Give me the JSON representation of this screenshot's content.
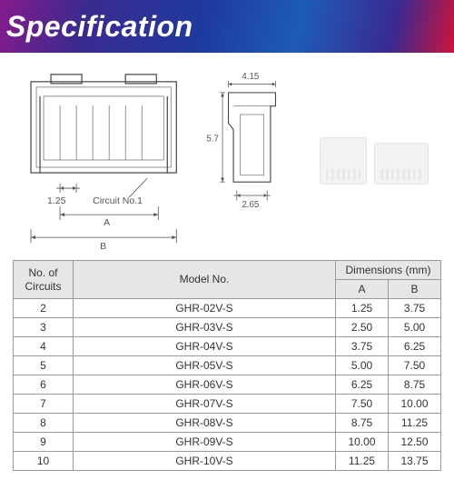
{
  "header": {
    "title": "Specification"
  },
  "drawing": {
    "front": {
      "pitch_label": "1.25",
      "circuit_label": "Circuit No.1",
      "dim_a_label": "A",
      "dim_b_label": "B"
    },
    "side": {
      "width_label": "4.15",
      "height_label": "5.7",
      "base_label": "2.65"
    }
  },
  "table": {
    "headers": {
      "circuits": "No. of\nCircuits",
      "model": "Model No.",
      "dimensions": "Dimensions (mm)",
      "a": "A",
      "b": "B"
    },
    "rows": [
      {
        "c": "2",
        "m": "GHR-02V-S",
        "a": "1.25",
        "b": "3.75"
      },
      {
        "c": "3",
        "m": "GHR-03V-S",
        "a": "2.50",
        "b": "5.00"
      },
      {
        "c": "4",
        "m": "GHR-04V-S",
        "a": "3.75",
        "b": "6.25"
      },
      {
        "c": "5",
        "m": "GHR-05V-S",
        "a": "5.00",
        "b": "7.50"
      },
      {
        "c": "6",
        "m": "GHR-06V-S",
        "a": "6.25",
        "b": "8.75"
      },
      {
        "c": "7",
        "m": "GHR-07V-S",
        "a": "7.50",
        "b": "10.00"
      },
      {
        "c": "8",
        "m": "GHR-08V-S",
        "a": "8.75",
        "b": "11.25"
      },
      {
        "c": "9",
        "m": "GHR-09V-S",
        "a": "10.00",
        "b": "12.50"
      },
      {
        "c": "10",
        "m": "GHR-10V-S",
        "a": "11.25",
        "b": "13.75"
      }
    ]
  },
  "colors": {
    "header_text": "#ffffff",
    "border": "#9a9a9a",
    "th_bg": "#e6e6e6",
    "line": "#444444"
  }
}
